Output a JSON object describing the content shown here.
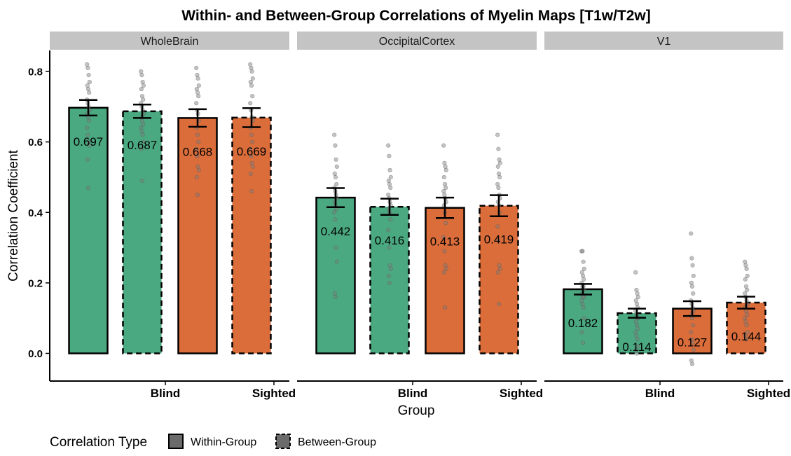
{
  "chart_data": {
    "type": "bar",
    "title": "Within- and Between-Group Correlations of Myelin Maps [T1w/T2w]",
    "xlabel": "Group",
    "ylabel": "Correlation Coefficient",
    "ylim": [
      -0.08,
      0.86
    ],
    "yticks": [
      "0.0",
      "0.2",
      "0.4",
      "0.6",
      "0.8"
    ],
    "categories": [
      "Blind",
      "Sighted"
    ],
    "grid": false,
    "legend": {
      "title": "Correlation Type",
      "position": "bottom-left",
      "entries": [
        "Within-Group",
        "Between-Group"
      ]
    },
    "colors": {
      "Blind": "#4ba981",
      "Sighted": "#db6d3b",
      "strip": "#c4c4c4",
      "point": "#7a7a7a"
    },
    "panels": [
      {
        "name": "WholeBrain",
        "bars": [
          {
            "group": "Blind",
            "type": "Within-Group",
            "value": 0.697,
            "label": "0.697",
            "se": 0.022,
            "points": [
              0.82,
              0.81,
              0.79,
              0.77,
              0.76,
              0.75,
              0.74,
              0.72,
              0.71,
              0.7,
              0.69,
              0.68,
              0.67,
              0.66,
              0.64,
              0.62,
              0.6,
              0.59,
              0.55,
              0.47
            ]
          },
          {
            "group": "Blind",
            "type": "Between-Group",
            "value": 0.687,
            "label": "0.687",
            "se": 0.019,
            "points": [
              0.8,
              0.79,
              0.77,
              0.76,
              0.75,
              0.73,
              0.72,
              0.71,
              0.7,
              0.69,
              0.68,
              0.67,
              0.66,
              0.65,
              0.64,
              0.63,
              0.62,
              0.6,
              0.58,
              0.49
            ]
          },
          {
            "group": "Sighted",
            "type": "Within-Group",
            "value": 0.668,
            "label": "0.668",
            "se": 0.025,
            "points": [
              0.81,
              0.79,
              0.78,
              0.76,
              0.75,
              0.74,
              0.73,
              0.71,
              0.69,
              0.68,
              0.66,
              0.64,
              0.62,
              0.6,
              0.58,
              0.56,
              0.53,
              0.52,
              0.5,
              0.45
            ]
          },
          {
            "group": "Sighted",
            "type": "Between-Group",
            "value": 0.669,
            "label": "0.669",
            "se": 0.027,
            "points": [
              0.82,
              0.81,
              0.8,
              0.78,
              0.77,
              0.76,
              0.73,
              0.71,
              0.69,
              0.67,
              0.66,
              0.64,
              0.62,
              0.6,
              0.58,
              0.56,
              0.54,
              0.53,
              0.51,
              0.46
            ]
          }
        ]
      },
      {
        "name": "OccipitalCortex",
        "bars": [
          {
            "group": "Blind",
            "type": "Within-Group",
            "value": 0.442,
            "label": "0.442",
            "se": 0.027,
            "points": [
              0.62,
              0.59,
              0.55,
              0.53,
              0.51,
              0.5,
              0.48,
              0.47,
              0.46,
              0.45,
              0.44,
              0.43,
              0.42,
              0.41,
              0.4,
              0.38,
              0.3,
              0.26,
              0.17,
              0.16
            ]
          },
          {
            "group": "Blind",
            "type": "Between-Group",
            "value": 0.416,
            "label": "0.416",
            "se": 0.023,
            "points": [
              0.59,
              0.56,
              0.52,
              0.5,
              0.49,
              0.48,
              0.47,
              0.45,
              0.44,
              0.43,
              0.42,
              0.41,
              0.4,
              0.38,
              0.35,
              0.3,
              0.25,
              0.24,
              0.22,
              0.2
            ]
          },
          {
            "group": "Sighted",
            "type": "Within-Group",
            "value": 0.413,
            "label": "0.413",
            "se": 0.029,
            "points": [
              0.59,
              0.54,
              0.53,
              0.52,
              0.5,
              0.48,
              0.47,
              0.46,
              0.45,
              0.44,
              0.43,
              0.42,
              0.4,
              0.37,
              0.33,
              0.29,
              0.25,
              0.24,
              0.23,
              0.13
            ]
          },
          {
            "group": "Sighted",
            "type": "Between-Group",
            "value": 0.419,
            "label": "0.419",
            "se": 0.03,
            "points": [
              0.62,
              0.58,
              0.55,
              0.54,
              0.53,
              0.51,
              0.5,
              0.48,
              0.47,
              0.45,
              0.44,
              0.43,
              0.42,
              0.4,
              0.36,
              0.32,
              0.25,
              0.24,
              0.23,
              0.14
            ]
          }
        ]
      },
      {
        "name": "V1",
        "bars": [
          {
            "group": "Blind",
            "type": "Within-Group",
            "value": 0.182,
            "label": "0.182",
            "se": 0.015,
            "points": [
              0.29,
              0.29,
              0.26,
              0.24,
              0.23,
              0.22,
              0.21,
              0.2,
              0.19,
              0.19,
              0.18,
              0.17,
              0.16,
              0.16,
              0.15,
              0.14,
              0.13,
              0.1,
              0.06,
              0.03
            ]
          },
          {
            "group": "Blind",
            "type": "Between-Group",
            "value": 0.114,
            "label": "0.114",
            "se": 0.013,
            "points": [
              0.23,
              0.18,
              0.17,
              0.16,
              0.15,
              0.14,
              0.13,
              0.12,
              0.11,
              0.1,
              0.1,
              0.09,
              0.08,
              0.07,
              0.06,
              0.05,
              0.04,
              0.02,
              0.01,
              0.0
            ]
          },
          {
            "group": "Sighted",
            "type": "Within-Group",
            "value": 0.127,
            "label": "0.127",
            "se": 0.021,
            "points": [
              0.34,
              0.27,
              0.25,
              0.22,
              0.2,
              0.19,
              0.17,
              0.15,
              0.14,
              0.13,
              0.12,
              0.11,
              0.1,
              0.08,
              0.06,
              0.04,
              0.03,
              0.01,
              -0.02,
              -0.03
            ]
          },
          {
            "group": "Sighted",
            "type": "Between-Group",
            "value": 0.144,
            "label": "0.144",
            "se": 0.017,
            "points": [
              0.26,
              0.25,
              0.24,
              0.22,
              0.21,
              0.19,
              0.18,
              0.17,
              0.16,
              0.15,
              0.14,
              0.13,
              0.12,
              0.11,
              0.1,
              0.09,
              0.08,
              0.06,
              0.05,
              0.04
            ]
          }
        ]
      }
    ]
  }
}
